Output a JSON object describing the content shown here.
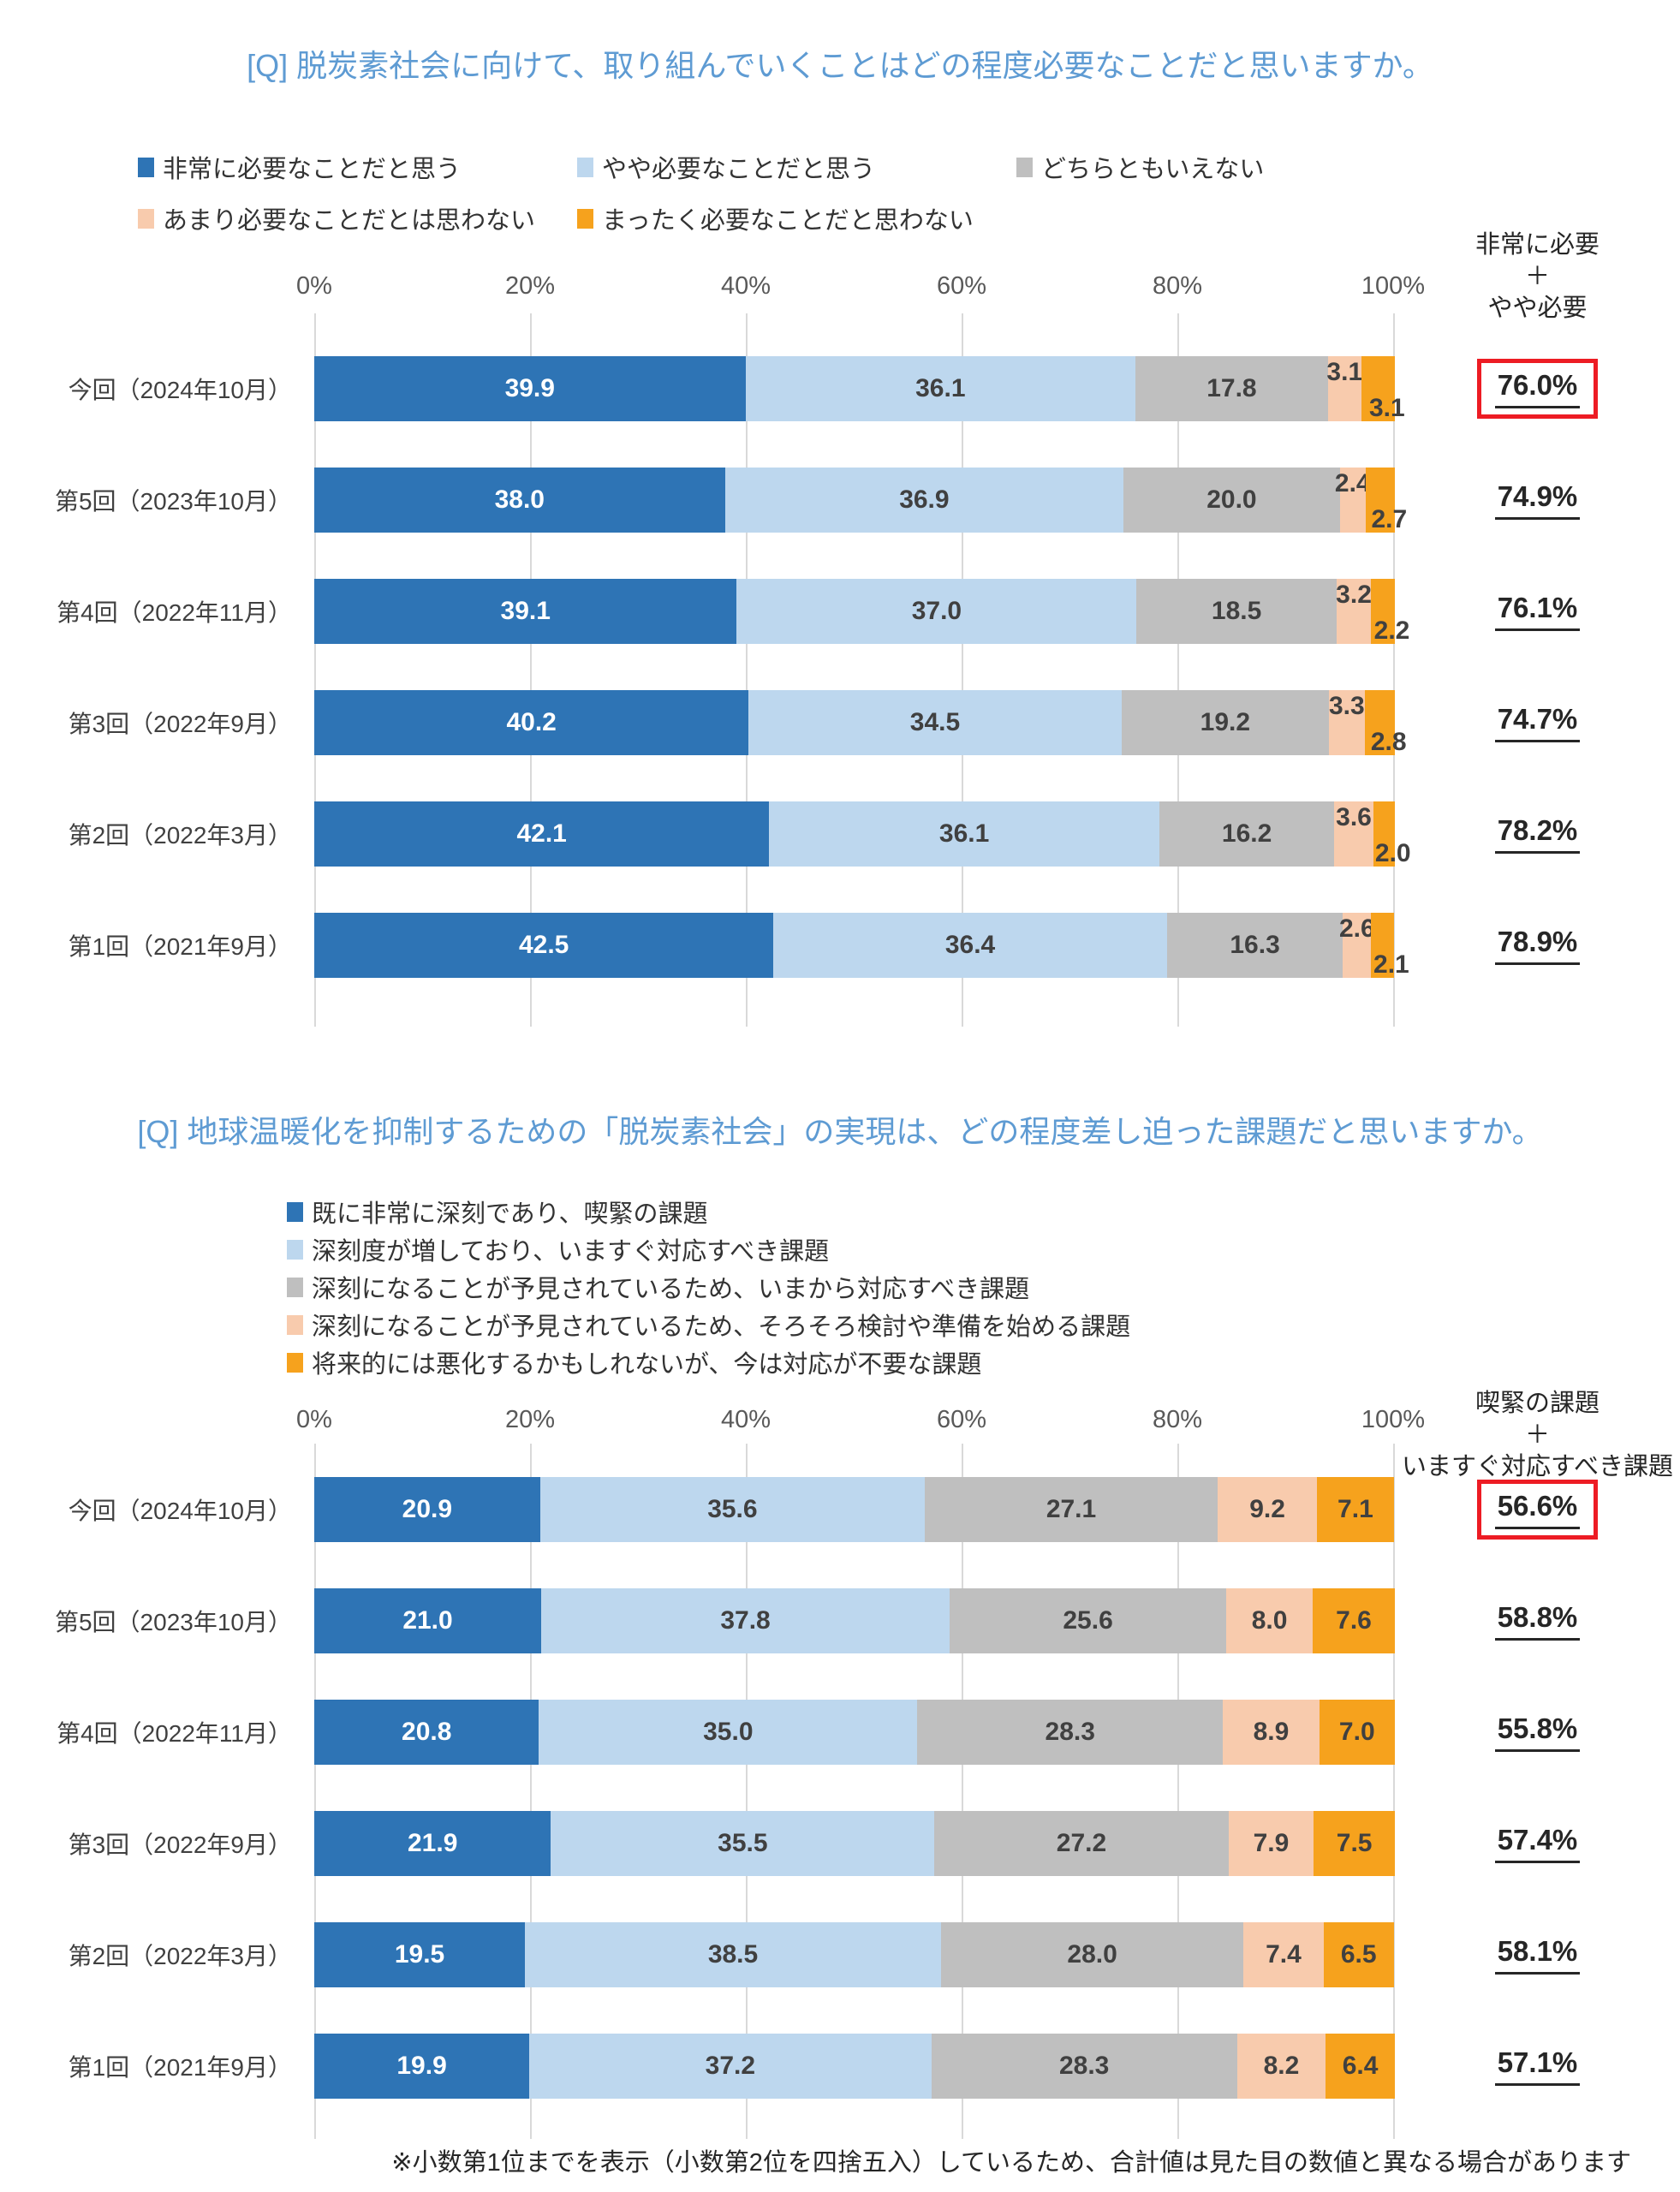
{
  "page": {
    "footnote": "※小数第1位までを表示（小数第2位を四捨五入）しているため、合計値は見た目の数値と異なる場合があります"
  },
  "colors": {
    "series": [
      "#2E74B5",
      "#BDD7EE",
      "#BFBFBF",
      "#F8CBAD",
      "#F6A21D"
    ],
    "gridline": "#D9D9D9",
    "title_blue": "#5E9BD3",
    "text_dark": "#404040",
    "text_black": "#262626",
    "axis_gray": "#595959",
    "highlight_red": "#ED1C24",
    "value_on_dark": "#FFFFFF"
  },
  "chart_data": [
    {
      "type": "bar",
      "stacked": true,
      "orientation": "horizontal",
      "title": "[Q] 脱炭素社会に向けて、取り組んでいくことはどの程度必要なことだと思いますか。",
      "legend": [
        "非常に必要なことだと思う",
        "やや必要なことだと思う",
        "どちらともいえない",
        "あまり必要なことだとは思わない",
        "まったく必要なことだと思わない"
      ],
      "categories": [
        "今回（2024年10月）",
        "第5回（2023年10月）",
        "第4回（2022年11月）",
        "第3回（2022年9月）",
        "第2回（2022年3月）",
        "第1回（2021年9月）"
      ],
      "series": [
        {
          "name": "非常に必要なことだと思う",
          "values": [
            39.9,
            38.0,
            39.1,
            40.2,
            42.1,
            42.5
          ]
        },
        {
          "name": "やや必要なことだと思う",
          "values": [
            36.1,
            36.9,
            37.0,
            34.5,
            36.1,
            36.4
          ]
        },
        {
          "name": "どちらともいえない",
          "values": [
            17.8,
            20.0,
            18.5,
            19.2,
            16.2,
            16.3
          ]
        },
        {
          "name": "あまり必要なことだとは思わない",
          "values": [
            3.1,
            2.4,
            3.2,
            3.3,
            3.6,
            2.6
          ]
        },
        {
          "name": "まったく必要なことだと思わない",
          "values": [
            3.1,
            2.7,
            2.2,
            2.8,
            2.0,
            2.1
          ]
        }
      ],
      "summary": {
        "header_lines": [
          "非常に必要",
          "＋",
          "やや必要"
        ],
        "values": [
          "76.0%",
          "74.9%",
          "76.1%",
          "74.7%",
          "78.2%",
          "78.9%"
        ],
        "highlight_index": 0
      },
      "ticks": [
        "0%",
        "20%",
        "40%",
        "60%",
        "80%",
        "100%"
      ],
      "xlim": [
        0,
        100
      ],
      "small_label_stagger": true
    },
    {
      "type": "bar",
      "stacked": true,
      "orientation": "horizontal",
      "title": "[Q] 地球温暖化を抑制するための「脱炭素社会」の実現は、どの程度差し迫った課題だと思いますか。",
      "legend": [
        "既に非常に深刻であり、喫緊の課題",
        "深刻度が増しており、いますぐ対応すべき課題",
        "深刻になることが予見されているため、いまから対応すべき課題",
        "深刻になることが予見されているため、そろそろ検討や準備を始める課題",
        "将来的には悪化するかもしれないが、今は対応が不要な課題"
      ],
      "categories": [
        "今回（2024年10月）",
        "第5回（2023年10月）",
        "第4回（2022年11月）",
        "第3回（2022年9月）",
        "第2回（2022年3月）",
        "第1回（2021年9月）"
      ],
      "series": [
        {
          "name": "既に非常に深刻であり、喫緊の課題",
          "values": [
            20.9,
            21.0,
            20.8,
            21.9,
            19.5,
            19.9
          ]
        },
        {
          "name": "深刻度が増しており、いますぐ対応すべき課題",
          "values": [
            35.6,
            37.8,
            35.0,
            35.5,
            38.5,
            37.2
          ]
        },
        {
          "name": "深刻になることが予見されているため、いまから対応すべき課題",
          "values": [
            27.1,
            25.6,
            28.3,
            27.2,
            28.0,
            28.3
          ]
        },
        {
          "name": "深刻になることが予見されているため、そろそろ検討や準備を始める課題",
          "values": [
            9.2,
            8.0,
            8.9,
            7.9,
            7.4,
            8.2
          ]
        },
        {
          "name": "将来的には悪化するかもしれないが、今は対応が不要な課題",
          "values": [
            7.1,
            7.6,
            7.0,
            7.5,
            6.5,
            6.4
          ]
        }
      ],
      "summary": {
        "header_lines": [
          "喫緊の課題",
          "＋",
          "いますぐ対応すべき課題"
        ],
        "values": [
          "56.6%",
          "58.8%",
          "55.8%",
          "57.4%",
          "58.1%",
          "57.1%"
        ],
        "highlight_index": 0
      },
      "ticks": [
        "0%",
        "20%",
        "40%",
        "60%",
        "80%",
        "100%"
      ],
      "xlim": [
        0,
        100
      ],
      "small_label_stagger": false
    }
  ]
}
